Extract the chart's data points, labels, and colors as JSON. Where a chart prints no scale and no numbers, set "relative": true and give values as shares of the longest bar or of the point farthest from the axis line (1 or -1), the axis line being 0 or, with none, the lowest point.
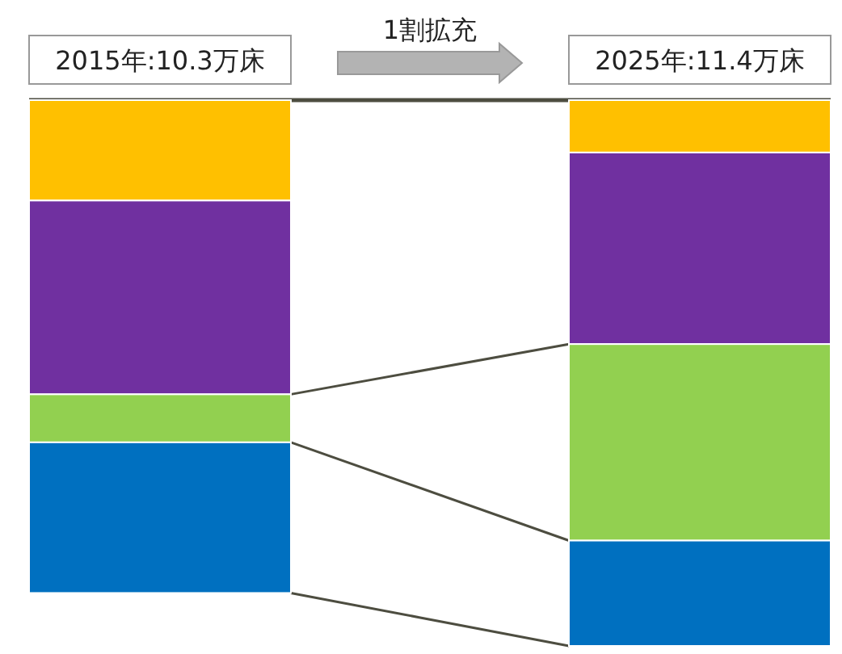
{
  "chart_data": {
    "type": "bar",
    "stacked": true,
    "relative": true,
    "categories": [
      "2015年:10.3万床",
      "2025年:11.4万床"
    ],
    "series": [
      {
        "color": "#ffc000",
        "values": [
          -0.184,
          -0.096
        ]
      },
      {
        "color": "#7030a0",
        "values": [
          -0.355,
          -0.351
        ]
      },
      {
        "color": "#92d050",
        "values": [
          -0.088,
          -0.36
        ]
      },
      {
        "color": "#0070c0",
        "values": [
          -0.276,
          -0.193
        ]
      }
    ],
    "annotations": [
      "1割拡充"
    ]
  }
}
